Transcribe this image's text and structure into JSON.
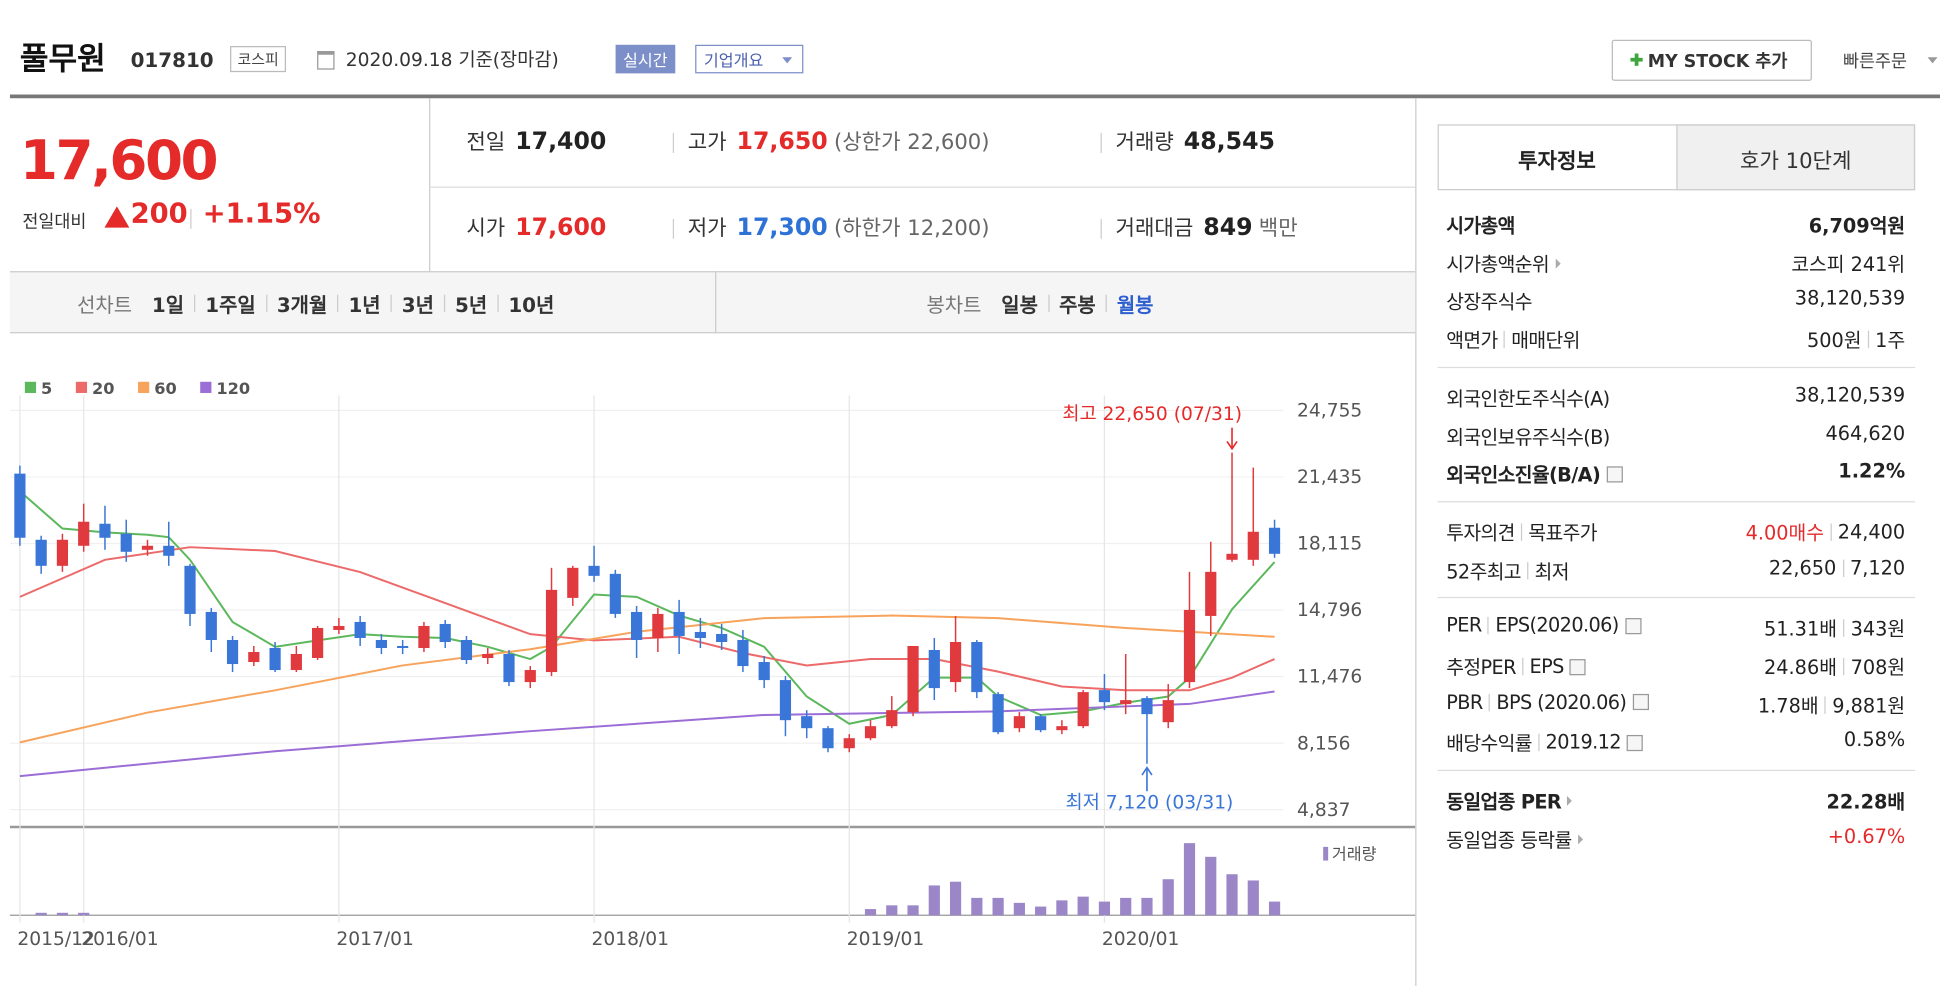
{
  "header": {
    "name": "풀무원",
    "code": "017810",
    "market": "코스피",
    "date": "2020.09.18 기준(장마감)",
    "realtime": "실시간",
    "company": "기업개요",
    "mystock": "MY STOCK 추가",
    "quick_order": "빠른주문"
  },
  "price": {
    "current": "17,600",
    "change_label": "전일대비",
    "change": "200",
    "change_pct": "+1.15%",
    "color": "#e52a2a",
    "stats": [
      [
        {
          "label": "전일",
          "value": "17,400"
        },
        {
          "label": "고가",
          "value": "17,650",
          "note": "(상한가 22,600)",
          "color": "#e52a2a"
        },
        {
          "label": "거래량",
          "value": "48,545"
        }
      ],
      [
        {
          "label": "시가",
          "value": "17,600",
          "color": "#e52a2a"
        },
        {
          "label": "저가",
          "value": "17,300",
          "note": "(하한가 12,200)",
          "color": "#2f72d6"
        },
        {
          "label": "거래대금",
          "value": "849",
          "note": "백만"
        }
      ]
    ]
  },
  "controls": {
    "line_label": "선차트",
    "line_periods": [
      "1일",
      "1주일",
      "3개월",
      "1년",
      "3년",
      "5년",
      "10년"
    ],
    "candle_label": "봉차트",
    "candle_periods": [
      "일봉",
      "주봉",
      "월봉"
    ],
    "selected": 2
  },
  "chart_data": {
    "type": "candlestick",
    "up_color": "#e0393e",
    "down_color": "#3a76d8",
    "open": [
      21600,
      18300,
      17000,
      18000,
      19100,
      18600,
      17800,
      18000,
      17000,
      14700,
      13300,
      12200,
      12900,
      11800,
      12400,
      13800,
      14200,
      13300,
      13000,
      12900,
      14100,
      13300,
      12400,
      12600,
      11200,
      11700,
      15400,
      17000,
      16600,
      14700,
      13400,
      14700,
      13700,
      13600,
      13300,
      12200,
      11300,
      9500,
      8900,
      7900,
      8400,
      9000,
      9700,
      12800,
      11200,
      13200,
      10600,
      8900,
      9500,
      8800,
      9000,
      10800,
      10100,
      10400,
      9200,
      11200,
      14500,
      17300,
      17300,
      18900
    ],
    "high": [
      22000,
      18500,
      18600,
      20100,
      20000,
      19300,
      18300,
      19200,
      17100,
      14900,
      13500,
      13000,
      13200,
      13000,
      14000,
      14400,
      14500,
      13600,
      13300,
      14200,
      14300,
      13500,
      12900,
      12800,
      12000,
      16900,
      17000,
      18000,
      16800,
      15000,
      14900,
      15300,
      14400,
      14100,
      13800,
      12500,
      11500,
      9800,
      9000,
      8600,
      9300,
      10500,
      13000,
      13400,
      14500,
      13300,
      10700,
      9700,
      9600,
      9300,
      10800,
      11600,
      12600,
      10500,
      11100,
      16700,
      18200,
      22650,
      21900,
      19300
    ],
    "low": [
      18000,
      16600,
      16700,
      17700,
      17800,
      17200,
      17500,
      17000,
      14000,
      12700,
      11700,
      12000,
      11700,
      11700,
      12300,
      13600,
      13000,
      12600,
      12600,
      12700,
      12900,
      12100,
      12100,
      11000,
      10900,
      11500,
      15000,
      16200,
      14400,
      12400,
      12700,
      12600,
      12900,
      12800,
      11700,
      10900,
      8500,
      8400,
      7700,
      7700,
      8300,
      8900,
      9500,
      10300,
      10700,
      10400,
      8600,
      8700,
      8700,
      8600,
      8900,
      9800,
      9600,
      7120,
      8900,
      10900,
      13500,
      17200,
      17000,
      17400
    ],
    "close": [
      18400,
      17000,
      18300,
      19200,
      18400,
      17700,
      18000,
      17500,
      14600,
      13300,
      12100,
      12700,
      11800,
      12600,
      13900,
      14000,
      13400,
      12900,
      12900,
      14000,
      13200,
      12300,
      12600,
      11200,
      11800,
      15800,
      16900,
      16500,
      14600,
      13300,
      14600,
      13500,
      13400,
      13200,
      12000,
      11300,
      9300,
      8900,
      7900,
      8400,
      9000,
      9800,
      13000,
      10900,
      13200,
      10700,
      8700,
      9500,
      8800,
      9000,
      10700,
      10200,
      10300,
      9600,
      10300,
      14800,
      16700,
      17600,
      18700,
      17600
    ],
    "ylim": [
      3970,
      25500
    ],
    "yticks": [
      {
        "value": 24755,
        "label": "24,755"
      },
      {
        "value": 21435,
        "label": "21,435"
      },
      {
        "value": 18115,
        "label": "18,115"
      },
      {
        "value": 14796,
        "label": "14,796"
      },
      {
        "value": 11476,
        "label": "11,476"
      },
      {
        "value": 8156,
        "label": "8,156"
      },
      {
        "value": 4837,
        "label": "4,837"
      }
    ],
    "xticks": [
      {
        "value": 0,
        "label": "2015/12"
      },
      {
        "value": 3,
        "label": "2016/01"
      },
      {
        "value": 15,
        "label": "2017/01"
      },
      {
        "value": 27,
        "label": "2018/01"
      },
      {
        "value": 39,
        "label": "2019/01"
      },
      {
        "value": 51,
        "label": "2020/01"
      }
    ],
    "series": [
      {
        "name": "5",
        "color": "#5cb85c",
        "x": [
          0,
          2,
          4,
          6,
          7,
          8,
          10,
          12,
          14,
          16,
          18,
          20,
          22,
          24,
          25,
          27,
          29,
          31,
          33,
          35,
          37,
          39,
          41,
          43,
          45,
          46,
          48,
          50,
          52,
          54,
          55,
          57,
          59
        ],
        "values": [
          20720,
          18860,
          18670,
          18550,
          18430,
          17300,
          14200,
          12960,
          13280,
          13590,
          13460,
          13400,
          12960,
          12350,
          12960,
          15570,
          15450,
          14520,
          13900,
          12960,
          10480,
          9120,
          9560,
          11420,
          11420,
          10480,
          9560,
          9740,
          10170,
          10480,
          11420,
          14830,
          17190
        ]
      },
      {
        "name": "20",
        "color": "#ec6a6a",
        "x": [
          0,
          4,
          8,
          12,
          16,
          20,
          24,
          27,
          31,
          34,
          37,
          40,
          43,
          46,
          49,
          52,
          55,
          57,
          59
        ],
        "values": [
          15450,
          17300,
          17930,
          17740,
          16690,
          15140,
          13590,
          13280,
          13460,
          12650,
          12030,
          12350,
          12350,
          11720,
          10980,
          10790,
          10790,
          11420,
          12350
        ]
      },
      {
        "name": "60",
        "color": "#f7a35c",
        "x": [
          0,
          6,
          12,
          18,
          24,
          29,
          35,
          41,
          46,
          52,
          59
        ],
        "values": [
          8190,
          9680,
          10790,
          12030,
          12840,
          13710,
          14390,
          14520,
          14390,
          13900,
          13460
        ]
      },
      {
        "name": "120",
        "color": "#9b6dd6",
        "x": [
          0,
          12,
          24,
          35,
          46,
          55,
          59
        ],
        "values": [
          6510,
          7750,
          8750,
          9560,
          9740,
          10110,
          10730
        ]
      }
    ],
    "volume": {
      "name": "거래량",
      "color": "#9b87c8",
      "x": [
        1,
        2,
        3,
        40,
        41,
        42,
        43,
        44,
        45,
        46,
        47,
        48,
        49,
        50,
        51,
        52,
        53,
        54,
        55,
        56,
        57,
        58,
        59
      ],
      "values": [
        2,
        2,
        2,
        5,
        8,
        8,
        24,
        27,
        14,
        14,
        10,
        7,
        12,
        15,
        11,
        14,
        14,
        29,
        58,
        47,
        33,
        28,
        11
      ]
    },
    "annotations": [
      {
        "text": "최고 22,650 (07/31)",
        "x": 57,
        "y": 22650,
        "color": "#e52a2a"
      },
      {
        "text": "최저 7,120 (03/31)",
        "x": 53,
        "y": 7120,
        "color": "#3a76d8"
      }
    ]
  },
  "info": {
    "tabs": [
      "투자정보",
      "호가 10단계"
    ],
    "groups": [
      [
        {
          "label": [
            "시가총액"
          ],
          "value": [
            "6,709억원"
          ],
          "bold": true
        },
        {
          "label": [
            "시가총액순위"
          ],
          "value": [
            "코스피 241위"
          ],
          "arrow": true
        },
        {
          "label": [
            "상장주식수"
          ],
          "value": [
            "38,120,539"
          ]
        },
        {
          "label": [
            "액면가",
            "매매단위"
          ],
          "value": [
            "500원",
            "1주"
          ]
        }
      ],
      [
        {
          "label": [
            "외국인한도주식수(A)"
          ],
          "value": [
            "38,120,539"
          ]
        },
        {
          "label": [
            "외국인보유주식수(B)"
          ],
          "value": [
            "464,620"
          ]
        },
        {
          "label": [
            "외국인소진율(B/A)"
          ],
          "value": [
            "1.22%"
          ],
          "bold": true,
          "help": true
        }
      ],
      [
        {
          "label": [
            "투자의견",
            "목표주가"
          ],
          "value": [
            "4.00매수",
            "24,400"
          ],
          "value_colors": [
            "#e52a2a",
            null
          ]
        },
        {
          "label": [
            "52주최고",
            "최저"
          ],
          "value": [
            "22,650",
            "7,120"
          ]
        }
      ],
      [
        {
          "label": [
            "PER",
            "EPS(2020.06)"
          ],
          "value": [
            "51.31배",
            "343원"
          ],
          "help": true
        },
        {
          "label": [
            "추정PER",
            "EPS"
          ],
          "value": [
            "24.86배",
            "708원"
          ],
          "help": true
        },
        {
          "label": [
            "PBR",
            "BPS (2020.06)"
          ],
          "value": [
            "1.78배",
            "9,881원"
          ],
          "help": true
        },
        {
          "label": [
            "배당수익률",
            "2019.12"
          ],
          "value": [
            "0.58%"
          ],
          "help": true
        }
      ],
      [
        {
          "label": [
            "동일업종 PER"
          ],
          "value": [
            "22.28배"
          ],
          "bold": true,
          "arrow": true
        },
        {
          "label": [
            "동일업종 등락률"
          ],
          "value": [
            "+0.67%"
          ],
          "arrow": true,
          "value_colors": [
            "#e52a2a"
          ]
        }
      ]
    ]
  }
}
